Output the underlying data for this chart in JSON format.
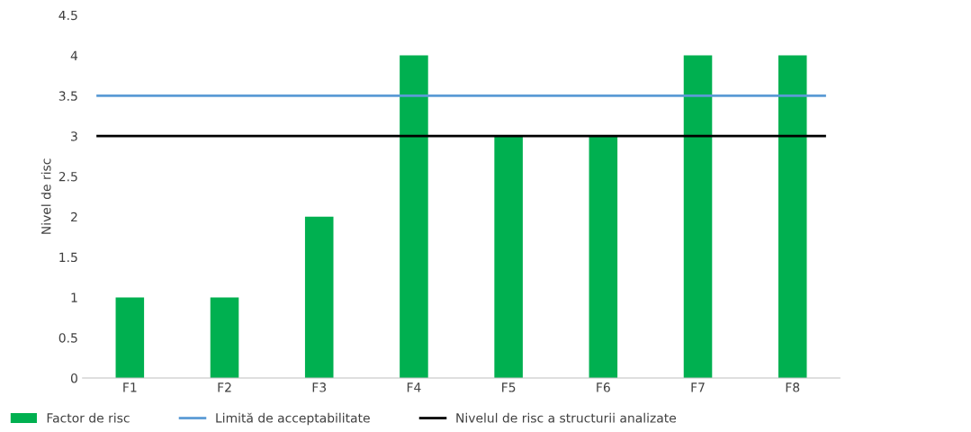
{
  "chart_data": {
    "type": "bar",
    "ylabel": "Nivel de risc",
    "categories": [
      "F1",
      "F2",
      "F3",
      "F4",
      "F5",
      "F6",
      "F7",
      "F8"
    ],
    "series": [
      {
        "name": "Factor de risc",
        "color": "#00b050",
        "values": [
          1,
          1,
          2,
          4,
          3,
          3,
          4,
          4
        ]
      }
    ],
    "ylim": [
      0,
      4.5
    ],
    "yticks": [
      0,
      0.5,
      1,
      1.5,
      2,
      2.5,
      3,
      3.5,
      4,
      4.5
    ],
    "ref_lines": [
      {
        "axis": "y",
        "value": 3.5,
        "label": "Limită de acceptabilitate",
        "color": "#5b9bd5"
      },
      {
        "axis": "y",
        "value": 3,
        "label": "Nivelul de risc a structurii analizate",
        "color": "#000000"
      }
    ],
    "legend": "bottom",
    "grid": false
  }
}
